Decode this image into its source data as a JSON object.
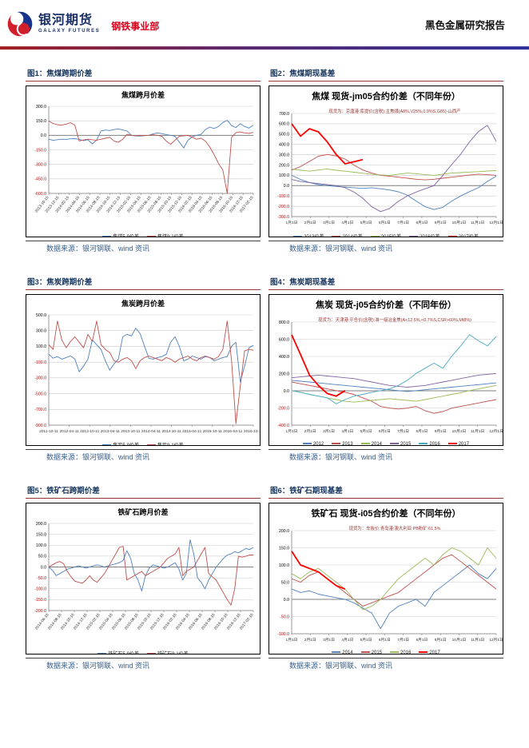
{
  "header": {
    "brand": "银河期货",
    "brand_en": "GALAXY FUTURES",
    "division": "钢铁事业部",
    "report_type": "黑色金属研究报告",
    "brand_color": "#1a2f66",
    "division_color": "#d9001b",
    "logo_blue": "#16338e",
    "logo_red": "#d21f2c"
  },
  "source_note": "数据来源：银河钢联、wind 资讯",
  "chart_data": [
    {
      "caption": "图1：焦煤跨期价差",
      "title": "焦煤跨月价差",
      "type": "line",
      "ylim": [
        -600,
        300
      ],
      "ytick": 150,
      "x_rotate": true,
      "x": [
        "2013-10-15",
        "2013-12-15",
        "2014-02-15",
        "2014-04-15",
        "2014-06-15",
        "2014-08-15",
        "2014-10-15",
        "2014-12-15",
        "2015-02-15",
        "2015-04-15",
        "2015-06-15",
        "2015-08-15",
        "2015-10-15",
        "2015-12-15",
        "2016-02-15",
        "2016-04-15",
        "2016-06-15",
        "2016-08-15",
        "2016-10-15",
        "2016-12-15",
        "2017-02-15"
      ],
      "series": [
        {
          "name": "焦煤5-9价差",
          "color": "#4F81BD",
          "values": [
            -40,
            -52,
            -45,
            -40,
            -42,
            -36,
            -34,
            -42,
            -55,
            -45,
            -88,
            -50,
            45,
            55,
            50,
            60,
            66,
            56,
            45,
            0,
            -6,
            -8,
            -4,
            0,
            16,
            25,
            18,
            8,
            0,
            -10,
            -70,
            -130,
            -50,
            -15,
            0,
            10,
            60,
            85,
            70,
            92,
            132,
            155,
            100,
            80,
            120,
            92,
            75,
            105
          ]
        },
        {
          "name": "焦煤9-1价差",
          "color": "#C0504D",
          "values": [
            150,
            122,
            110,
            105,
            116,
            130,
            105,
            -58,
            -48,
            -40,
            -46,
            -50,
            -40,
            -30,
            -20,
            -60,
            -72,
            -40,
            10,
            0,
            -5,
            0,
            -3,
            0,
            5,
            0,
            -10,
            -60,
            -92,
            -50,
            -10,
            -5,
            0,
            -20,
            -40,
            -30,
            -60,
            -120,
            -200,
            -290,
            -360,
            -600,
            -20,
            28,
            35,
            25,
            20,
            30
          ]
        }
      ]
    },
    {
      "caption": "图2：焦煤期现基差",
      "title": "焦煤 现货-jm05合约价差（不同年份）",
      "subtitle": "现货为：京唐港:库提价(含税):主焦煤(A8%,V25%,0.9%S,G85)-山西产",
      "type": "line",
      "ylim": [
        -300,
        700
      ],
      "ytick": 100,
      "x_rotate": false,
      "x": [
        "1月1日",
        "2月1日",
        "3月1日",
        "4月1日",
        "5月1日",
        "6月1日",
        "7月1日",
        "8月1日",
        "9月1日",
        "10月1日",
        "11月1日",
        "12月1日"
      ],
      "series": [
        {
          "name": "2013价差",
          "color": "#4F81BD",
          "values": [
            100,
            60,
            30,
            10,
            0,
            -8,
            -14,
            -20,
            -26,
            -20,
            -30,
            -42,
            -60,
            -92,
            -150,
            -205,
            -232,
            -210,
            -150,
            -100,
            -58,
            -20,
            40,
            92
          ]
        },
        {
          "name": "2014价差",
          "color": "#C0504D",
          "values": [
            150,
            185,
            235,
            285,
            302,
            288,
            258,
            200,
            152,
            122,
            100,
            92,
            82,
            72,
            62,
            56,
            62,
            72,
            82,
            92,
            102,
            112,
            106,
            100
          ]
        },
        {
          "name": "2015价差",
          "color": "#9BBB59",
          "values": [
            162,
            150,
            140,
            152,
            162,
            150,
            140,
            130,
            120,
            110,
            104,
            100,
            112,
            122,
            116,
            106,
            100,
            112,
            122,
            126,
            132,
            136,
            142,
            146
          ]
        },
        {
          "name": "2016价差",
          "color": "#8064A2",
          "values": [
            60,
            40,
            30,
            20,
            10,
            0,
            -20,
            -62,
            -122,
            -205,
            -252,
            -222,
            -152,
            -100,
            -62,
            -30,
            0,
            100,
            205,
            305,
            425,
            525,
            585,
            430
          ]
        },
        {
          "name": "2017价差",
          "color": "#FF0000",
          "width": 1.8,
          "values": [
            600,
            480,
            552,
            522,
            425,
            302,
            212,
            232,
            252,
            null,
            null,
            null,
            null,
            null,
            null,
            null,
            null,
            null,
            null,
            null,
            null,
            null,
            null,
            null
          ]
        }
      ]
    },
    {
      "caption": "图3：焦炭跨期价差",
      "title": "焦炭跨月价差",
      "type": "line",
      "ylim": [
        -900,
        500
      ],
      "ytick": 200,
      "x_rotate": false,
      "x": [
        "2011-10-11",
        "2012-04-11",
        "2012-10-11",
        "2013-04-11",
        "2013-10-11",
        "2014-04-11",
        "2014-10-11",
        "2015-04-11",
        "2015-10-11",
        "2016-04-11",
        "2016-10-11"
      ],
      "series": [
        {
          "name": "焦炭5-9价差",
          "color": "#4F81BD",
          "values": [
            0,
            -50,
            -30,
            -62,
            -42,
            -20,
            -62,
            -222,
            -152,
            -62,
            182,
            122,
            62,
            -82,
            -202,
            -122,
            -62,
            222,
            252,
            232,
            332,
            262,
            102,
            -52,
            -62,
            -42,
            -30,
            0,
            152,
            222,
            102,
            -82,
            -62,
            -22,
            -42,
            -62,
            -30,
            -42,
            -82,
            -62,
            -42,
            -30,
            102,
            152,
            -352,
            -152,
            82,
            112
          ]
        },
        {
          "name": "焦炭9-1价差",
          "color": "#C0504D",
          "values": [
            122,
            62,
            422,
            182,
            82,
            162,
            222,
            152,
            82,
            252,
            162,
            422,
            122,
            62,
            22,
            -82,
            -102,
            -62,
            -42,
            -82,
            -182,
            -82,
            -42,
            -22,
            -42,
            -62,
            -82,
            -42,
            -62,
            -102,
            -62,
            -42,
            -22,
            -62,
            -82,
            -42,
            -22,
            -42,
            -62,
            -30,
            62,
            422,
            -82,
            -882,
            -402,
            42,
            62,
            52
          ]
        }
      ]
    },
    {
      "caption": "图4：焦炭期现基差",
      "title": "焦炭 现货-j05合约价差（不同年份）",
      "subtitle": "现货为：天津港:平仓价(含税):准一级冶金焦(A<12.5%,<0.7%S,CSR>60%,Mt8%)",
      "type": "line",
      "ylim": [
        -400,
        800
      ],
      "ytick": 200,
      "x_rotate": false,
      "x": [
        "1月1日",
        "2月1日",
        "3月1日",
        "4月1日",
        "5月1日",
        "6月1日",
        "7月1日",
        "8月1日",
        "9月1日",
        "10月1日",
        "11月1日",
        "12月1日"
      ],
      "series": [
        {
          "name": "2012",
          "color": "#4F81BD",
          "values": [
            122,
            112,
            102,
            92,
            82,
            72,
            62,
            52,
            42,
            32,
            22,
            12,
            2,
            -8,
            2,
            12,
            22,
            32,
            42,
            52,
            62,
            72,
            82,
            92
          ]
        },
        {
          "name": "2013",
          "color": "#C0504D",
          "values": [
            102,
            82,
            62,
            42,
            22,
            2,
            -18,
            -42,
            -82,
            -122,
            -182,
            -202,
            -212,
            -202,
            -182,
            -232,
            -262,
            -242,
            -202,
            -182,
            -162,
            -142,
            -122,
            -102
          ]
        },
        {
          "name": "2014",
          "color": "#9BBB59",
          "values": [
            2,
            -18,
            -42,
            -62,
            -82,
            -102,
            -122,
            -132,
            -122,
            -112,
            -102,
            -92,
            -102,
            -112,
            -122,
            -102,
            -82,
            -62,
            -42,
            -22,
            2,
            22,
            42,
            62
          ]
        },
        {
          "name": "2015",
          "color": "#8064A2",
          "values": [
            152,
            162,
            172,
            182,
            172,
            162,
            152,
            142,
            122,
            102,
            82,
            62,
            52,
            42,
            52,
            62,
            82,
            102,
            122,
            142,
            162,
            182,
            192,
            202
          ]
        },
        {
          "name": "2016",
          "color": "#4BACC6",
          "values": [
            2,
            -18,
            -42,
            -62,
            -82,
            -152,
            -102,
            -62,
            -42,
            -18,
            2,
            22,
            62,
            122,
            202,
            262,
            322,
            262,
            402,
            522,
            652,
            582,
            522,
            632
          ]
        },
        {
          "name": "2017",
          "color": "#FF0000",
          "width": 1.8,
          "values": [
            652,
            422,
            182,
            62,
            -32,
            -62,
            2,
            null,
            null,
            null,
            null,
            null,
            null,
            null,
            null,
            null,
            null,
            null,
            null,
            null,
            null,
            null,
            null,
            null
          ]
        }
      ]
    },
    {
      "caption": "图5：铁矿石跨期价差",
      "title": "铁矿石跨月价差",
      "type": "line",
      "ylim": [
        -200,
        200
      ],
      "ytick": 50,
      "x_rotate": true,
      "x": [
        "2014-06-16",
        "2014-08-16",
        "2014-10-16",
        "2014-12-16",
        "2015-02-16",
        "2015-04-16",
        "2015-06-16",
        "2015-08-16",
        "2015-10-16",
        "2015-12-16",
        "2016-02-16",
        "2016-04-16",
        "2016-06-16",
        "2016-08-16",
        "2016-10-16",
        "2016-12-16",
        "2017-02-16"
      ],
      "series": [
        {
          "name": "铁矿石5-9价差",
          "color": "#4F81BD",
          "values": [
            0,
            -15,
            -40,
            -30,
            -20,
            -10,
            -5,
            0,
            5,
            0,
            -5,
            0,
            5,
            10,
            5,
            0,
            5,
            10,
            15,
            20,
            30,
            75,
            40,
            -30,
            -60,
            -110,
            -40,
            -5,
            10,
            5,
            0,
            -5,
            0,
            10,
            20,
            -10,
            -60,
            -30,
            125,
            60,
            -50,
            -70,
            -100,
            -60,
            -30,
            0,
            20,
            40,
            55,
            60,
            70,
            65,
            75,
            85,
            80,
            90
          ]
        },
        {
          "name": "铁矿石9-1价差",
          "color": "#C0504D",
          "values": [
            0,
            10,
            20,
            25,
            15,
            -20,
            -45,
            -65,
            -70,
            -75,
            -60,
            -40,
            -60,
            -70,
            -50,
            -30,
            0,
            30,
            60,
            90,
            95,
            -60,
            -50,
            -40,
            -30,
            -20,
            -40,
            -30,
            -20,
            -10,
            0,
            20,
            40,
            50,
            60,
            90,
            -40,
            -20,
            -10,
            0,
            30,
            60,
            90,
            -30,
            -45,
            -60,
            -90,
            -120,
            -150,
            -175,
            -100,
            50,
            45,
            50,
            55,
            55
          ]
        }
      ]
    },
    {
      "caption": "图6：铁矿石期现基差",
      "title": "铁矿石 现货-i05合约价差（不同年份）",
      "subtitle": "现货为：车板价:青岛港:澳大利亚:PB粉矿:61.5%",
      "type": "line",
      "ylim": [
        -100,
        200
      ],
      "ytick": 50,
      "x_rotate": false,
      "x": [
        "1月1日",
        "2月1日",
        "3月1日",
        "4月1日",
        "5月1日",
        "6月1日",
        "7月1日",
        "8月1日",
        "9月1日",
        "10月1日",
        "11月1日",
        "12月1日"
      ],
      "series": [
        {
          "name": "2014",
          "color": "#4F81BD",
          "values": [
            30,
            20,
            25,
            15,
            10,
            5,
            0,
            -10,
            -25,
            -40,
            -85,
            -40,
            -20,
            -10,
            0,
            -20,
            20,
            40,
            60,
            80,
            100,
            75,
            60,
            90
          ]
        },
        {
          "name": "2015",
          "color": "#C0504D",
          "values": [
            60,
            50,
            70,
            80,
            60,
            40,
            20,
            0,
            -20,
            -10,
            0,
            10,
            20,
            40,
            60,
            80,
            100,
            120,
            130,
            110,
            90,
            70,
            50,
            30
          ]
        },
        {
          "name": "2016",
          "color": "#9BBB59",
          "values": [
            75,
            60,
            80,
            90,
            70,
            50,
            30,
            0,
            -30,
            -20,
            0,
            30,
            60,
            80,
            100,
            120,
            100,
            130,
            150,
            140,
            120,
            100,
            150,
            120
          ]
        },
        {
          "name": "2017",
          "color": "#FF0000",
          "width": 1.8,
          "values": [
            140,
            100,
            90,
            80,
            60,
            40,
            30,
            null,
            null,
            null,
            null,
            null,
            null,
            null,
            null,
            null,
            null,
            null,
            null,
            null,
            null,
            null,
            null,
            null
          ]
        }
      ]
    }
  ]
}
